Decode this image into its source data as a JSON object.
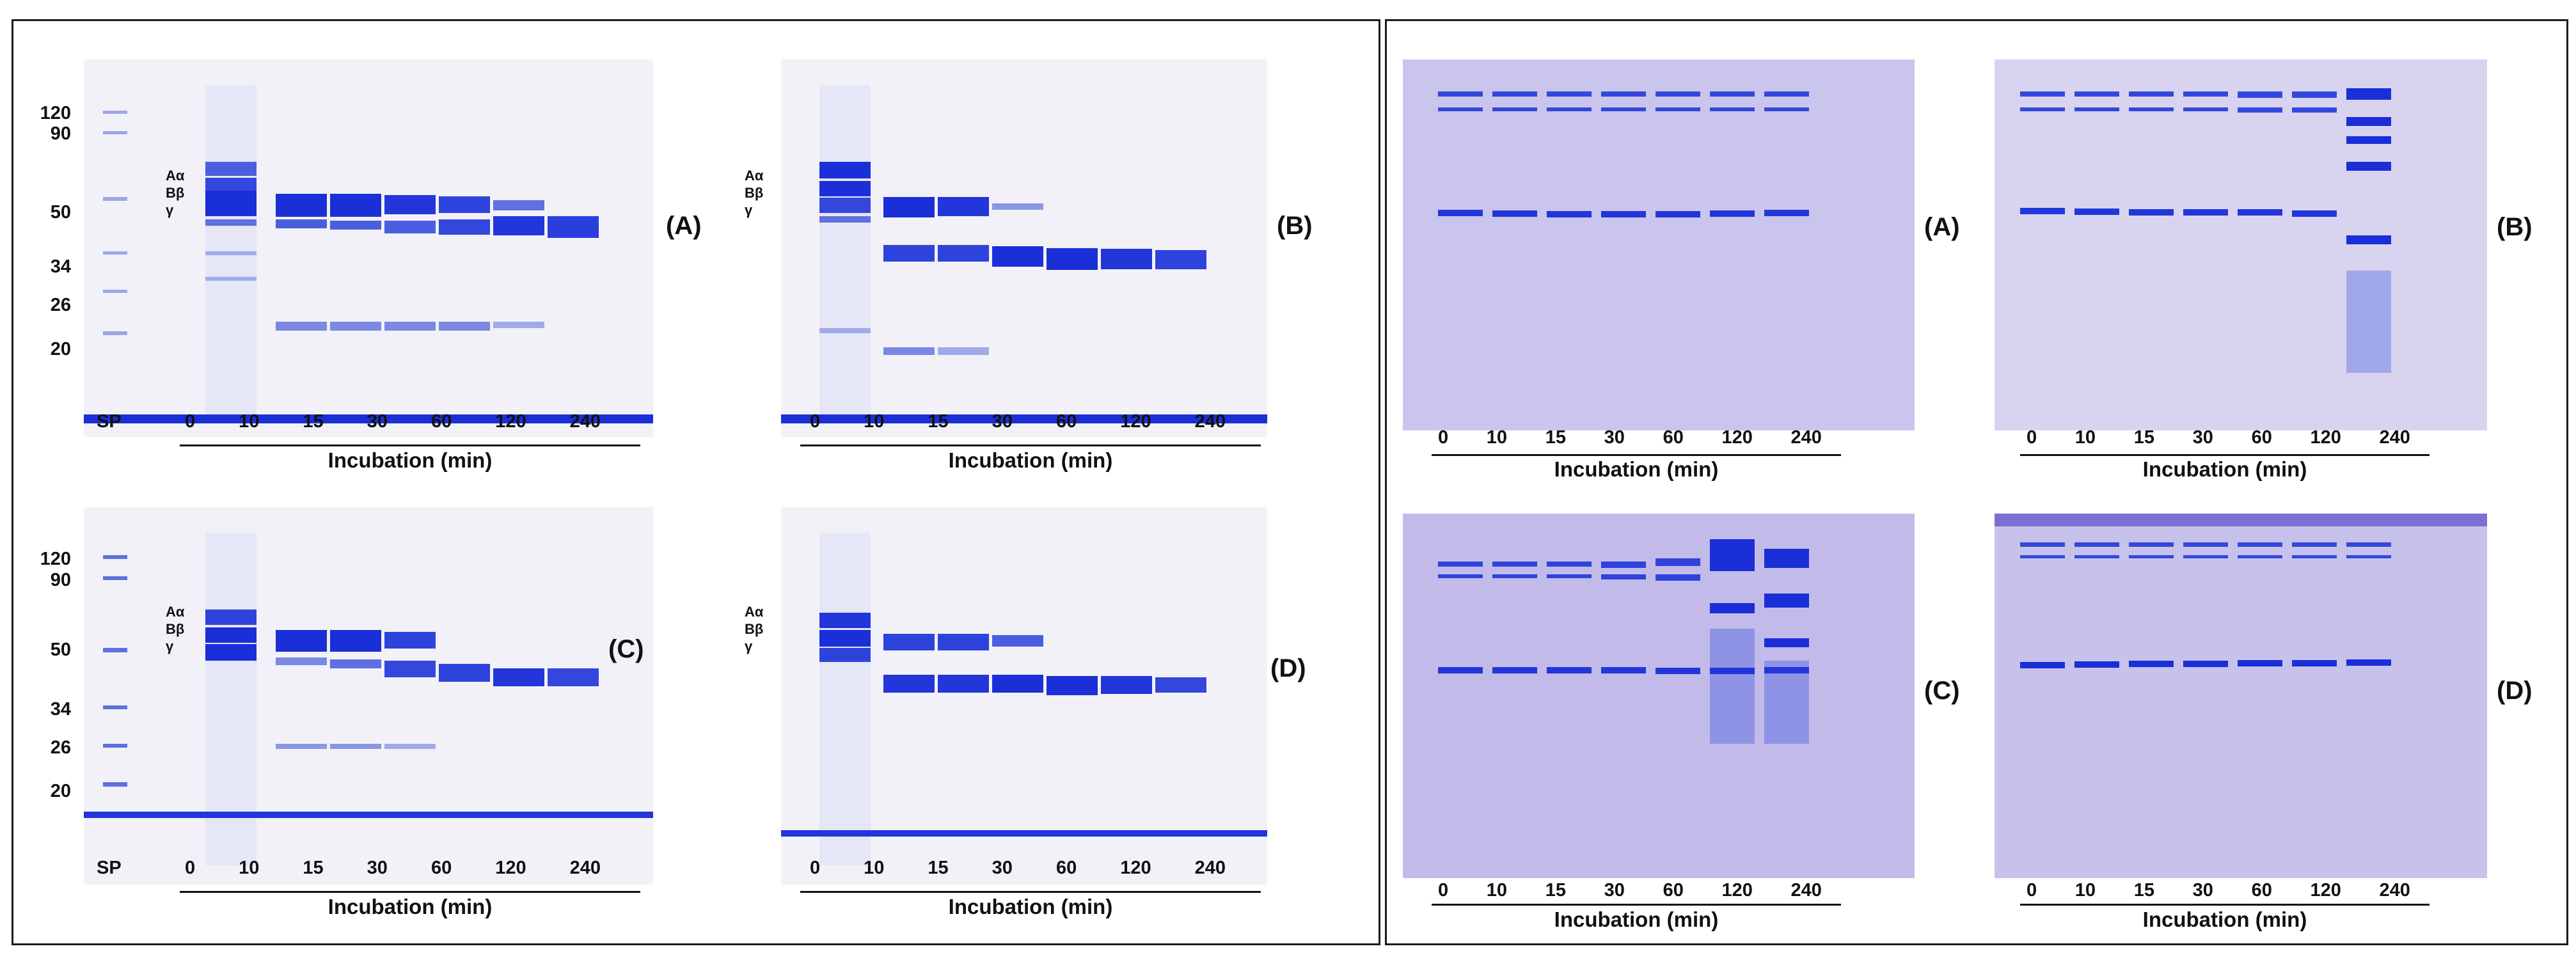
{
  "left_figure": {
    "mw_markers": [
      "120",
      "90",
      "50",
      "34",
      "26",
      "20"
    ],
    "size_marker_lane": "SP",
    "chains": [
      "Aα",
      "Bβ",
      "γ"
    ],
    "lanes": [
      "0",
      "10",
      "15",
      "30",
      "60",
      "120",
      "240"
    ],
    "axis_title": "Incubation (min)",
    "panels": [
      "(A)",
      "(B)",
      "(C)",
      "(D)"
    ]
  },
  "right_figure": {
    "lanes": [
      "0",
      "10",
      "15",
      "30",
      "60",
      "120",
      "240"
    ],
    "axis_title": "Incubation (min)",
    "panels": [
      "(A)",
      "(B)",
      "(C)",
      "(D)"
    ]
  },
  "colors": {
    "band_strong": "#1a2fd8",
    "band_medium": "#4a5fe0",
    "band_light": "#9aa6ea",
    "gel_background_left": "#f1f0f8",
    "gel_background_right": "#c9c4ec"
  }
}
